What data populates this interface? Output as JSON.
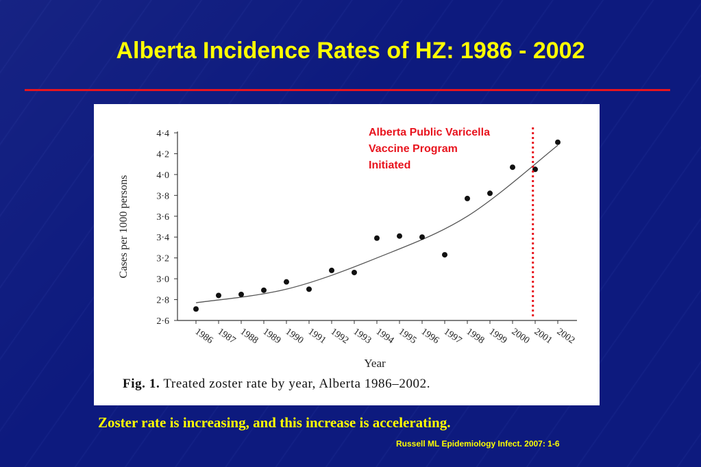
{
  "slide": {
    "title": "Alberta Incidence Rates of HZ: 1986 - 2002",
    "conclusion": "Zoster rate is increasing, and this increase is accelerating.",
    "citation": "Russell ML Epidemiology Infect. 2007: 1-6",
    "colors": {
      "background": "#0d1a7e",
      "title": "#ffff00",
      "rule": "#e8141e",
      "annotation": "#e8141e"
    }
  },
  "figure": {
    "caption_label": "Fig. 1.",
    "caption_text": " Treated zoster rate by year, Alberta 1986–2002.",
    "annotation_lines": [
      "Alberta Public Varicella",
      "Vaccine Program",
      "Initiated"
    ]
  },
  "chart_data": {
    "type": "scatter",
    "title": "",
    "xlabel": "Year",
    "ylabel": "Cases per 1000 persons",
    "categories": [
      "1986",
      "1987",
      "1988",
      "1989",
      "1990",
      "1991",
      "1992",
      "1993",
      "1994",
      "1995",
      "1996",
      "1997",
      "1998",
      "1999",
      "2000",
      "2001",
      "2002"
    ],
    "values": [
      2.71,
      2.84,
      2.85,
      2.89,
      2.97,
      2.9,
      3.08,
      3.06,
      3.39,
      3.41,
      3.4,
      3.23,
      3.77,
      3.82,
      4.07,
      4.05,
      4.31
    ],
    "y_tick_labels": [
      "2·6",
      "2·8",
      "3·0",
      "3·2",
      "3·4",
      "3·6",
      "3·8",
      "4·0",
      "4·2",
      "4·4"
    ],
    "ylim": [
      2.6,
      4.4
    ],
    "trend_line": {
      "type": "fitted curve",
      "points": [
        [
          1986,
          2.77
        ],
        [
          1990,
          2.9
        ],
        [
          1994,
          3.2
        ],
        [
          1998,
          3.6
        ],
        [
          2002,
          4.28
        ]
      ]
    },
    "reference_line": {
      "x": 2000.9,
      "label": "Alberta Public Varicella Vaccine Program Initiated",
      "color": "#e8141e",
      "style": "dotted"
    },
    "grid": false,
    "legend": "none"
  }
}
